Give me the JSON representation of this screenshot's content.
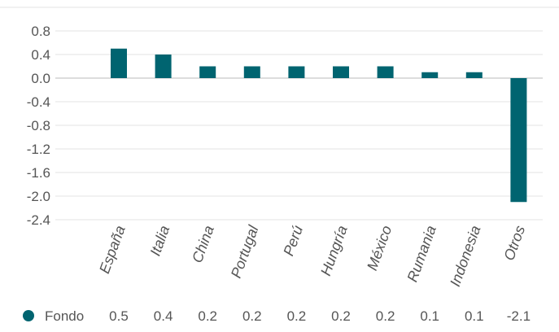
{
  "chart_data": {
    "type": "bar",
    "categories": [
      "España",
      "Italia",
      "China",
      "Portugal",
      "Perú",
      "Hungría",
      "México",
      "Rumania",
      "Indonesia",
      "Otros"
    ],
    "series": [
      {
        "name": "Fondo",
        "values": [
          0.5,
          0.4,
          0.2,
          0.2,
          0.2,
          0.2,
          0.2,
          0.1,
          0.1,
          -2.1
        ]
      }
    ],
    "value_labels": [
      "0.5",
      "0.4",
      "0.2",
      "0.2",
      "0.2",
      "0.2",
      "0.2",
      "0.1",
      "0.1",
      "-2.1"
    ],
    "ylim": [
      -2.4,
      0.8
    ],
    "yticks": [
      "0.8",
      "0.4",
      "0.0",
      "-0.4",
      "-0.8",
      "-1.2",
      "-1.6",
      "-2.0",
      "-2.4"
    ],
    "grid": true,
    "legend_position": "bottom",
    "colors": {
      "bar": "#006470",
      "grid": "#e3e3e3",
      "zero_line": "#bbbbbb",
      "text": "#555555"
    }
  }
}
